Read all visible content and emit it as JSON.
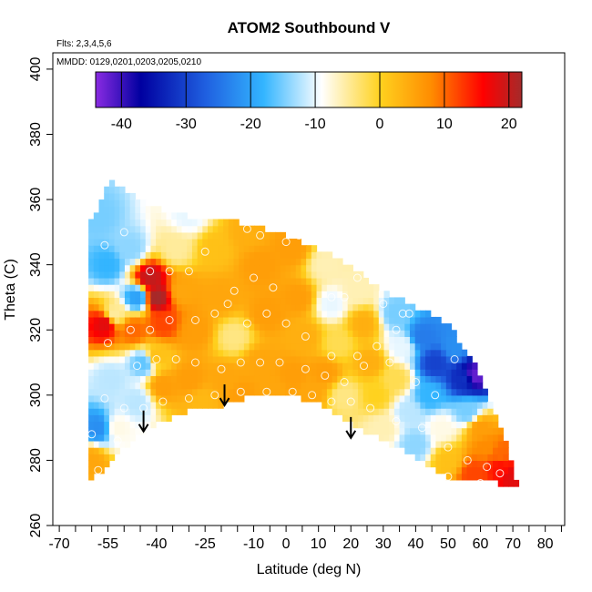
{
  "chart_data": {
    "type": "heatmap",
    "title": "ATOM2 Southbound V",
    "annotations": [
      "Flts: 2,3,4,5,6",
      "MMDD: 0129,0201,0203,0205,0210"
    ],
    "xlabel": "Latitude (deg N)",
    "ylabel": "Theta (C)",
    "xlim": [
      -72,
      86
    ],
    "ylim": [
      260,
      405
    ],
    "x_ticks": [
      -70,
      -55,
      -40,
      -25,
      -10,
      0,
      10,
      20,
      30,
      40,
      50,
      60,
      70,
      80
    ],
    "y_ticks": [
      260,
      280,
      300,
      320,
      340,
      360,
      380,
      400
    ],
    "colorbar": {
      "range": [
        -44,
        22
      ],
      "ticks": [
        -40,
        -30,
        -20,
        -10,
        0,
        10,
        20
      ],
      "colors": [
        "#8a2be2",
        "#0000a0",
        "#1f5fe0",
        "#33b5ff",
        "#ffffff",
        "#ffd21f",
        "#ff8c00",
        "#ff0000",
        "#a52a2a"
      ]
    },
    "domain_top": [
      [
        -54,
        366
      ],
      [
        -48,
        362
      ],
      [
        -42,
        358
      ],
      [
        -30,
        355
      ],
      [
        -20,
        354
      ],
      [
        -10,
        352
      ],
      [
        0,
        349
      ],
      [
        10,
        345
      ],
      [
        18,
        341
      ],
      [
        26,
        335
      ],
      [
        34,
        330
      ],
      [
        42,
        326
      ],
      [
        50,
        322
      ],
      [
        56,
        313
      ],
      [
        60,
        306
      ],
      [
        64,
        296
      ],
      [
        68,
        285
      ],
      [
        71,
        274
      ]
    ],
    "domain_bottom": [
      [
        -61,
        274
      ],
      [
        -55,
        278
      ],
      [
        -48,
        286
      ],
      [
        -42,
        290
      ],
      [
        -36,
        293
      ],
      [
        -28,
        296
      ],
      [
        -20,
        297
      ],
      [
        -10,
        300
      ],
      [
        0,
        300
      ],
      [
        10,
        298
      ],
      [
        16,
        294
      ],
      [
        22,
        290
      ],
      [
        30,
        286
      ],
      [
        40,
        281
      ],
      [
        50,
        275
      ],
      [
        60,
        274
      ],
      [
        71,
        272
      ]
    ],
    "field_points": [
      [
        -58,
        355,
        -15
      ],
      [
        -55,
        340,
        -18
      ],
      [
        -53,
        325,
        -5
      ],
      [
        -56,
        322,
        18
      ],
      [
        -54,
        305,
        -12
      ],
      [
        -58,
        290,
        -22
      ],
      [
        -60,
        280,
        5
      ],
      [
        -52,
        290,
        -8
      ],
      [
        -48,
        345,
        -14
      ],
      [
        -46,
        330,
        -20
      ],
      [
        -47,
        320,
        10
      ],
      [
        -44,
        310,
        -16
      ],
      [
        -46,
        298,
        -12
      ],
      [
        -42,
        336,
        20
      ],
      [
        -40,
        330,
        22
      ],
      [
        -38,
        322,
        12
      ],
      [
        -40,
        312,
        2
      ],
      [
        -38,
        303,
        6
      ],
      [
        -34,
        345,
        -5
      ],
      [
        -30,
        355,
        -10
      ],
      [
        -32,
        332,
        5
      ],
      [
        -28,
        320,
        6
      ],
      [
        -30,
        305,
        6
      ],
      [
        -26,
        298,
        3
      ],
      [
        -22,
        345,
        2
      ],
      [
        -20,
        330,
        5
      ],
      [
        -16,
        318,
        -4
      ],
      [
        -18,
        305,
        5
      ],
      [
        -14,
        300,
        6
      ],
      [
        -12,
        350,
        4
      ],
      [
        -8,
        340,
        6
      ],
      [
        -6,
        325,
        6
      ],
      [
        -8,
        310,
        5
      ],
      [
        -4,
        302,
        5
      ],
      [
        2,
        345,
        6
      ],
      [
        4,
        330,
        6
      ],
      [
        6,
        318,
        4
      ],
      [
        2,
        306,
        6
      ],
      [
        8,
        301,
        5
      ],
      [
        12,
        340,
        -6
      ],
      [
        14,
        328,
        -10
      ],
      [
        16,
        316,
        -2
      ],
      [
        12,
        307,
        6
      ],
      [
        18,
        300,
        -4
      ],
      [
        22,
        332,
        -6
      ],
      [
        24,
        322,
        4
      ],
      [
        26,
        310,
        4
      ],
      [
        28,
        300,
        0
      ],
      [
        30,
        290,
        -6
      ],
      [
        34,
        325,
        -15
      ],
      [
        36,
        315,
        -10
      ],
      [
        34,
        305,
        -2
      ],
      [
        38,
        295,
        -12
      ],
      [
        40,
        285,
        -14
      ],
      [
        42,
        318,
        -24
      ],
      [
        46,
        310,
        -30
      ],
      [
        44,
        300,
        -18
      ],
      [
        48,
        290,
        -8
      ],
      [
        50,
        280,
        2
      ],
      [
        52,
        315,
        -22
      ],
      [
        55,
        305,
        -32
      ],
      [
        58,
        306,
        -42
      ],
      [
        56,
        295,
        -15
      ],
      [
        60,
        290,
        6
      ],
      [
        62,
        284,
        8
      ],
      [
        66,
        282,
        10
      ],
      [
        58,
        276,
        12
      ],
      [
        70,
        275,
        18
      ],
      [
        66,
        278,
        15
      ]
    ],
    "sample_points": [
      [
        -56,
        346
      ],
      [
        -50,
        350
      ],
      [
        -42,
        338
      ],
      [
        -36,
        338
      ],
      [
        -30,
        338
      ],
      [
        -25,
        344
      ],
      [
        -12,
        351
      ],
      [
        -8,
        349
      ],
      [
        0,
        347
      ],
      [
        4,
        349
      ],
      [
        10,
        349
      ],
      [
        -55,
        316
      ],
      [
        -48,
        320
      ],
      [
        -42,
        320
      ],
      [
        -36,
        323
      ],
      [
        -28,
        323
      ],
      [
        -22,
        325
      ],
      [
        -18,
        328
      ],
      [
        -12,
        322
      ],
      [
        -6,
        325
      ],
      [
        0,
        322
      ],
      [
        6,
        318
      ],
      [
        14,
        312
      ],
      [
        22,
        312
      ],
      [
        28,
        315
      ],
      [
        34,
        320
      ],
      [
        38,
        325
      ],
      [
        -46,
        309
      ],
      [
        -40,
        311
      ],
      [
        -34,
        311
      ],
      [
        -28,
        310
      ],
      [
        -20,
        308
      ],
      [
        -14,
        310
      ],
      [
        -8,
        310
      ],
      [
        -2,
        310
      ],
      [
        6,
        308
      ],
      [
        12,
        306
      ],
      [
        18,
        304
      ],
      [
        24,
        309
      ],
      [
        32,
        310
      ],
      [
        40,
        304
      ],
      [
        46,
        300
      ],
      [
        52,
        311
      ],
      [
        -56,
        299
      ],
      [
        -50,
        296
      ],
      [
        -44,
        296
      ],
      [
        -38,
        298
      ],
      [
        -30,
        299
      ],
      [
        -22,
        300
      ],
      [
        -14,
        301
      ],
      [
        -6,
        301
      ],
      [
        2,
        301
      ],
      [
        8,
        300
      ],
      [
        14,
        298
      ],
      [
        20,
        298
      ],
      [
        26,
        296
      ],
      [
        34,
        292
      ],
      [
        42,
        290
      ],
      [
        50,
        284
      ],
      [
        56,
        280
      ],
      [
        62,
        278
      ],
      [
        -60,
        288
      ],
      [
        -52,
        286
      ],
      [
        -46,
        284
      ],
      [
        -58,
        277
      ],
      [
        50,
        275
      ],
      [
        60,
        273
      ],
      [
        66,
        276
      ],
      [
        14,
        330
      ],
      [
        18,
        330
      ],
      [
        22,
        336
      ],
      [
        30,
        328
      ],
      [
        36,
        325
      ],
      [
        -4,
        333
      ],
      [
        -10,
        336
      ],
      [
        -16,
        332
      ]
    ],
    "arrows": [
      [
        -44,
        295
      ],
      [
        -19,
        303
      ],
      [
        20,
        293
      ]
    ]
  }
}
